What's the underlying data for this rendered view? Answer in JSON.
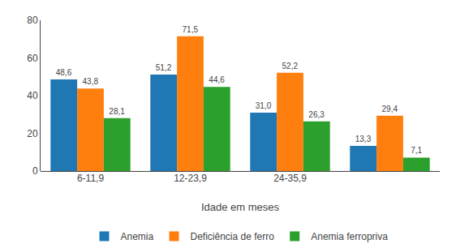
{
  "chart_data": {
    "type": "bar",
    "categories": [
      "6-11,9",
      "12-23,9",
      "24-35,9",
      null
    ],
    "xlabel": "Idade em meses",
    "series": [
      {
        "name": "Anemia",
        "values": [
          48.6,
          51.2,
          31.0,
          13.3
        ],
        "value_labels": [
          "48,6",
          "51,2",
          "31,0",
          "13,3"
        ]
      },
      {
        "name": "Deficiência de ferro",
        "values": [
          43.8,
          71.5,
          52.2,
          29.4
        ],
        "value_labels": [
          "43,8",
          "71,5",
          "52,2",
          "29,4"
        ]
      },
      {
        "name": "Anemia ferropriva",
        "values": [
          28.1,
          44.6,
          26.3,
          7.1
        ],
        "value_labels": [
          "28,1",
          "44,6",
          "26,3",
          "7,1"
        ]
      }
    ],
    "ylim": [
      0,
      80
    ],
    "yticks": [
      0,
      20,
      40,
      60,
      80
    ],
    "grid": false,
    "legend": "bottom",
    "data_labels": true
  }
}
